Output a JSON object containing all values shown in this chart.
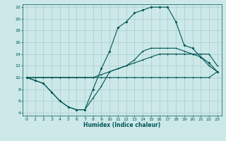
{
  "xlabel": "Humidex (Indice chaleur)",
  "background_color": "#cce8e8",
  "grid_color": "#aacccc",
  "line_color": "#005555",
  "xlim": [
    -0.5,
    23.5
  ],
  "ylim": [
    3.5,
    22.5
  ],
  "xticks": [
    0,
    1,
    2,
    3,
    4,
    5,
    6,
    7,
    8,
    9,
    10,
    11,
    12,
    13,
    14,
    15,
    16,
    17,
    18,
    19,
    20,
    21,
    22,
    23
  ],
  "yticks": [
    4,
    6,
    8,
    10,
    12,
    14,
    16,
    18,
    20,
    22
  ],
  "curve_x": [
    0,
    1,
    2,
    3,
    4,
    5,
    6,
    7,
    8,
    9,
    10,
    11,
    12,
    13,
    14,
    15,
    16,
    17,
    18,
    19,
    20,
    21,
    22,
    23
  ],
  "curve_y": [
    10,
    9.5,
    9,
    7.5,
    6,
    5,
    4.5,
    4.5,
    8,
    11.5,
    14.5,
    18.5,
    19.5,
    21,
    21.5,
    22,
    22,
    22,
    19.5,
    15.5,
    15,
    13.5,
    12.5,
    11
  ],
  "line1_x": [
    0,
    1,
    2,
    3,
    4,
    5,
    6,
    7,
    8,
    9,
    10,
    11,
    12,
    13,
    14,
    15,
    16,
    17,
    18,
    19,
    20,
    21,
    22,
    23
  ],
  "line1_y": [
    10,
    10,
    10,
    10,
    10,
    10,
    10,
    10,
    10,
    10,
    10,
    10,
    10,
    10,
    10,
    10,
    10,
    10,
    10,
    10,
    10,
    10,
    10,
    11
  ],
  "line2_x": [
    0,
    1,
    2,
    3,
    4,
    5,
    6,
    7,
    8,
    9,
    10,
    11,
    12,
    13,
    14,
    15,
    16,
    17,
    18,
    19,
    20,
    21,
    22,
    23
  ],
  "line2_y": [
    10,
    10,
    10,
    10,
    10,
    10,
    10,
    10,
    10,
    10.5,
    11,
    11.5,
    12,
    12.5,
    13,
    13.5,
    14,
    14,
    14,
    14,
    14,
    14,
    14,
    12
  ],
  "line3_x": [
    0,
    1,
    2,
    3,
    4,
    5,
    6,
    7,
    8,
    9,
    10,
    11,
    12,
    13,
    14,
    15,
    16,
    17,
    18,
    19,
    20,
    21,
    22,
    23
  ],
  "line3_y": [
    10,
    9.5,
    9,
    7.5,
    6,
    5,
    4.5,
    4.5,
    6.5,
    8.5,
    11,
    11.5,
    12,
    13,
    14.5,
    15,
    15,
    15,
    15,
    14.5,
    14,
    13.5,
    12,
    11
  ]
}
